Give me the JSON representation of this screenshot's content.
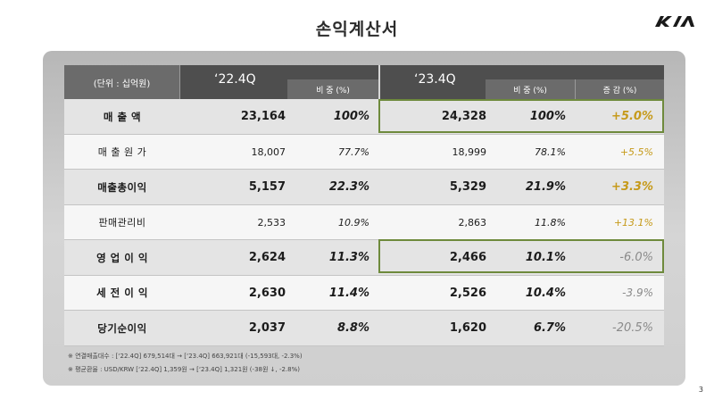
{
  "title": "손익계산서",
  "logo_icon": "kia-logo-icon",
  "page_number": "3",
  "header": {
    "unit": "(단위 : 십억원)",
    "year1": "‘22.4Q",
    "year1_share": "비 중 (%)",
    "year2": "‘23.4Q",
    "year2_share": "비 중 (%)",
    "change": "증 감 (%)"
  },
  "rows": [
    {
      "label": "매  출  액",
      "v1": "23,164",
      "p1": "100%",
      "v2": "24,328",
      "p2": "100%",
      "change": "+5.0%"
    },
    {
      "label": "매 출 원 가",
      "v1": "18,007",
      "p1": "77.7%",
      "v2": "18,999",
      "p2": "78.1%",
      "change": "+5.5%"
    },
    {
      "label": "매출총이익",
      "v1": "5,157",
      "p1": "22.3%",
      "v2": "5,329",
      "p2": "21.9%",
      "change": "+3.3%"
    },
    {
      "label": "판매관리비",
      "v1": "2,533",
      "p1": "10.9%",
      "v2": "2,863",
      "p2": "11.8%",
      "change": "+13.1%"
    },
    {
      "label": "영 업 이 익",
      "v1": "2,624",
      "p1": "11.3%",
      "v2": "2,466",
      "p2": "10.1%",
      "change": "-6.0%"
    },
    {
      "label": "세 전 이 익",
      "v1": "2,630",
      "p1": "11.4%",
      "v2": "2,526",
      "p2": "10.4%",
      "change": "-3.9%"
    },
    {
      "label": "당기순이익",
      "v1": "2,037",
      "p1": "8.8%",
      "v2": "1,620",
      "p2": "6.7%",
      "change": "-20.5%"
    }
  ],
  "notes": [
    "※  연결매출대수 : [‘22.4Q] 679,514대  →  [‘23.4Q] 663,921대 (-15,593대, -2.3%)",
    "※  평균환율 : USD/KRW [‘22.4Q] 1,359원  →  [‘23.4Q] 1,321원 (-38원 ↓, -2.8%)"
  ],
  "colors": {
    "positive_change": "#c69a1a",
    "negative_change": "#8a8a8a",
    "highlight_border": "#6e8a3c",
    "header_dark": "#4e4e4e",
    "header_mid": "#6b6b6b"
  }
}
